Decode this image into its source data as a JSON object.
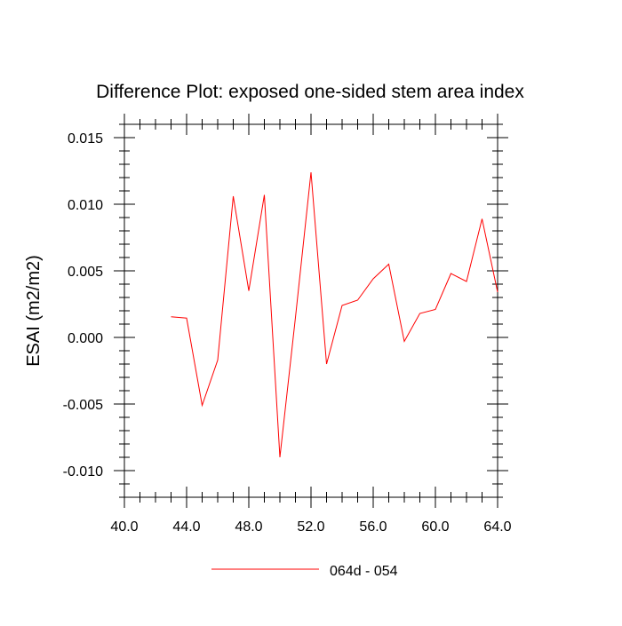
{
  "chart_data": {
    "type": "line",
    "title": "Difference Plot: exposed one-sided stem area index",
    "ylabel": "ESAI  (m2/m2)",
    "xlabel": "",
    "xlim": [
      40,
      64
    ],
    "ylim": [
      -0.012,
      0.016
    ],
    "x_ticks": [
      40,
      44,
      48,
      52,
      56,
      60,
      64
    ],
    "x_tick_labels": [
      "40.0",
      "44.0",
      "48.0",
      "52.0",
      "56.0",
      "60.0",
      "64.0"
    ],
    "y_ticks": [
      0.015,
      0.01,
      0.005,
      0,
      -0.005,
      -0.01
    ],
    "y_tick_labels": [
      "0.015",
      "0.010",
      "0.005",
      "0.000",
      "-0.005",
      "-0.010"
    ],
    "grid": false,
    "legend_position": "bottom-center",
    "colors": {
      "series": "#ff0000",
      "axes": "#000000"
    },
    "series": [
      {
        "name": "064d - 054",
        "x": [
          43,
          44,
          45,
          46,
          47,
          48,
          49,
          50,
          51,
          52,
          53,
          54,
          55,
          56,
          57,
          58,
          59,
          60,
          61,
          62,
          63,
          64
        ],
        "y": [
          0.00155,
          0.00145,
          -0.0051,
          -0.0017,
          0.0106,
          0.0035,
          0.0107,
          -0.009,
          0.0015,
          0.0124,
          -0.002,
          0.0024,
          0.0028,
          0.0044,
          0.0055,
          -0.0003,
          0.0018,
          0.0021,
          0.0048,
          0.0042,
          0.0089,
          0.0034
        ]
      }
    ]
  }
}
